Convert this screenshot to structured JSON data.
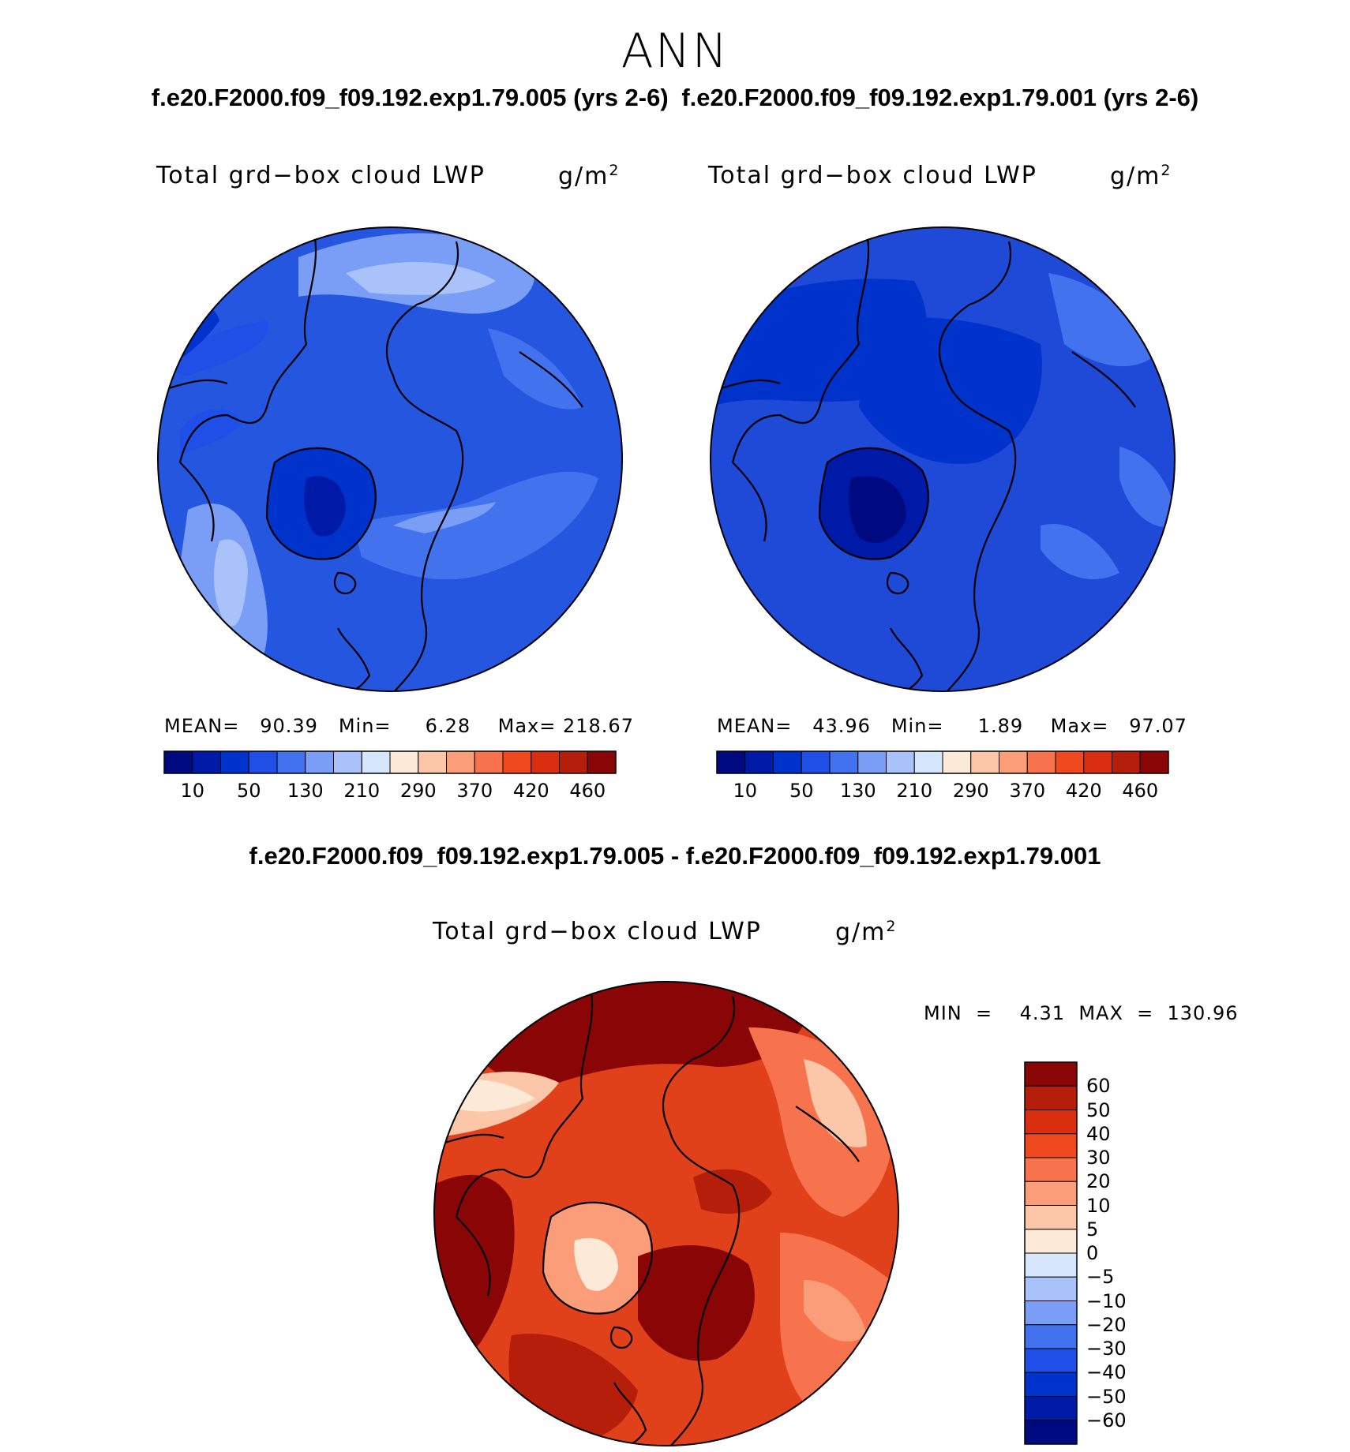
{
  "figure": {
    "season": "ANN",
    "case_titles": [
      "f.e20.F2000.f09_f09.192.exp1.79.005 (yrs 2-6)",
      "f.e20.F2000.f09_f09.192.exp1.79.001 (yrs 2-6)"
    ],
    "difference_title": "f.e20.F2000.f09_f09.192.exp1.79.005 - f.e20.F2000.f09_f09.192.exp1.79.001"
  },
  "panels": [
    {
      "variable": "Total grd−box cloud LWP",
      "units_base": "g/m",
      "units_exp": "2",
      "stats_text": "MEAN=   90.39   Min=     6.28    Max= 218.67",
      "colorbar_ticks": [
        "10",
        "50",
        "130",
        "210",
        "290",
        "370",
        "420",
        "460"
      ]
    },
    {
      "variable": "Total grd−box cloud LWP",
      "units_base": "g/m",
      "units_exp": "2",
      "stats_text": "MEAN=   43.96   Min=     1.89    Max=   97.07",
      "colorbar_ticks": [
        "10",
        "50",
        "130",
        "210",
        "290",
        "370",
        "420",
        "460"
      ]
    },
    {
      "variable": "Total grd−box cloud LWP",
      "units_base": "g/m",
      "units_exp": "2",
      "stats_text": "MIN  =    4.31  MAX  =  130.96",
      "colorbar_ticks": [
        "60",
        "50",
        "40",
        "30",
        "20",
        "10",
        "5",
        "0",
        "−5",
        "−10",
        "−20",
        "−30",
        "−40",
        "−50",
        "−60"
      ]
    }
  ],
  "colors": {
    "abs_scale": [
      "#000a80",
      "#001aa8",
      "#0033cc",
      "#1f4fe6",
      "#4272ee",
      "#7a9ef5",
      "#a9c3fa",
      "#d6e6fc",
      "#fde9d8",
      "#fcc6a8",
      "#fb9d78",
      "#f7734d",
      "#f0481f",
      "#d92e0f",
      "#b51e0a",
      "#8a0606"
    ],
    "diff_scale": [
      "#8a0606",
      "#b51e0a",
      "#d92e0f",
      "#f0481f",
      "#f7734d",
      "#fb9d78",
      "#fcc6a8",
      "#fde9d8",
      "#d6e6fc",
      "#a9c3fa",
      "#7a9ef5",
      "#4272ee",
      "#1f4fe6",
      "#0033cc",
      "#001aa8",
      "#000a80"
    ],
    "panel_a_base": "#2456e0",
    "panel_b_base": "#1f4ad8",
    "panel_c_base": "#e0401a"
  }
}
